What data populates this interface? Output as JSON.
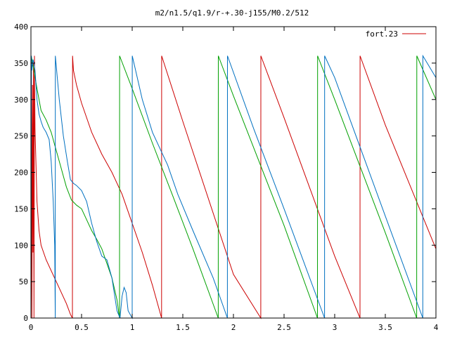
{
  "chart_data": {
    "type": "line",
    "title": "m2/n1.5/q1.9/r-+.30-j155/M0.2/512",
    "xlabel": "",
    "ylabel": "",
    "xlim": [
      0,
      4
    ],
    "ylim": [
      0,
      400
    ],
    "grid": false,
    "legend_position": "top-right",
    "x_ticks": [
      {
        "value": 0,
        "label": "0"
      },
      {
        "value": 0.5,
        "label": "0.5"
      },
      {
        "value": 1,
        "label": "1"
      },
      {
        "value": 1.5,
        "label": "1.5"
      },
      {
        "value": 2,
        "label": "2"
      },
      {
        "value": 2.5,
        "label": "2.5"
      },
      {
        "value": 3,
        "label": "3"
      },
      {
        "value": 3.5,
        "label": "3.5"
      },
      {
        "value": 4,
        "label": "4"
      }
    ],
    "y_ticks": [
      {
        "value": 0,
        "label": "0"
      },
      {
        "value": 50,
        "label": "50"
      },
      {
        "value": 100,
        "label": "100"
      },
      {
        "value": 150,
        "label": "150"
      },
      {
        "value": 200,
        "label": "200"
      },
      {
        "value": 250,
        "label": "250"
      },
      {
        "value": 300,
        "label": "300"
      },
      {
        "value": 350,
        "label": "350"
      },
      {
        "value": 400,
        "label": "400"
      }
    ],
    "series": [
      {
        "name": "fort.23",
        "color": "#cc0000",
        "points": [
          [
            0.0,
            0
          ],
          [
            0.005,
            340
          ],
          [
            0.01,
            0
          ],
          [
            0.015,
            320
          ],
          [
            0.02,
            90
          ],
          [
            0.025,
            350
          ],
          [
            0.03,
            0
          ],
          [
            0.035,
            360
          ],
          [
            0.04,
            260
          ],
          [
            0.06,
            160
          ],
          [
            0.08,
            120
          ],
          [
            0.1,
            100
          ],
          [
            0.15,
            80
          ],
          [
            0.2,
            65
          ],
          [
            0.25,
            50
          ],
          [
            0.3,
            35
          ],
          [
            0.35,
            20
          ],
          [
            0.39,
            5
          ],
          [
            0.41,
            0
          ],
          [
            0.411,
            360
          ],
          [
            0.42,
            340
          ],
          [
            0.45,
            320
          ],
          [
            0.5,
            295
          ],
          [
            0.6,
            255
          ],
          [
            0.7,
            225
          ],
          [
            0.8,
            200
          ],
          [
            0.9,
            170
          ],
          [
            1.0,
            130
          ],
          [
            1.1,
            90
          ],
          [
            1.2,
            45
          ],
          [
            1.29,
            0
          ],
          [
            1.291,
            360
          ],
          [
            1.5,
            270
          ],
          [
            2.0,
            60
          ],
          [
            2.27,
            0
          ],
          [
            2.271,
            360
          ],
          [
            2.5,
            275
          ],
          [
            3.0,
            85
          ],
          [
            3.25,
            0
          ],
          [
            3.251,
            360
          ],
          [
            3.5,
            265
          ],
          [
            4.0,
            95
          ]
        ]
      },
      {
        "name": "",
        "color": "#00a000",
        "points": [
          [
            0.0,
            0
          ],
          [
            0.003,
            360
          ],
          [
            0.01,
            355
          ],
          [
            0.03,
            340
          ],
          [
            0.06,
            315
          ],
          [
            0.1,
            285
          ],
          [
            0.15,
            272
          ],
          [
            0.2,
            255
          ],
          [
            0.25,
            230
          ],
          [
            0.3,
            205
          ],
          [
            0.35,
            180
          ],
          [
            0.4,
            162
          ],
          [
            0.45,
            155
          ],
          [
            0.5,
            150
          ],
          [
            0.55,
            135
          ],
          [
            0.6,
            120
          ],
          [
            0.65,
            108
          ],
          [
            0.7,
            95
          ],
          [
            0.75,
            75
          ],
          [
            0.8,
            55
          ],
          [
            0.85,
            25
          ],
          [
            0.875,
            0
          ],
          [
            0.876,
            360
          ],
          [
            1.0,
            315
          ],
          [
            1.2,
            240
          ],
          [
            1.4,
            168
          ],
          [
            1.6,
            95
          ],
          [
            1.85,
            0
          ],
          [
            1.851,
            360
          ],
          [
            2.0,
            305
          ],
          [
            2.5,
            127
          ],
          [
            2.83,
            0
          ],
          [
            2.831,
            360
          ],
          [
            3.0,
            300
          ],
          [
            3.5,
            117
          ],
          [
            3.81,
            0
          ],
          [
            3.811,
            360
          ],
          [
            4.0,
            300
          ]
        ]
      },
      {
        "name": "",
        "color": "#0070c0",
        "points": [
          [
            0.0,
            0
          ],
          [
            0.004,
            360
          ],
          [
            0.01,
            340
          ],
          [
            0.02,
            355
          ],
          [
            0.03,
            350
          ],
          [
            0.04,
            340
          ],
          [
            0.05,
            320
          ],
          [
            0.06,
            300
          ],
          [
            0.08,
            280
          ],
          [
            0.1,
            270
          ],
          [
            0.12,
            262
          ],
          [
            0.15,
            255
          ],
          [
            0.18,
            245
          ],
          [
            0.2,
            215
          ],
          [
            0.22,
            160
          ],
          [
            0.235,
            100
          ],
          [
            0.24,
            0
          ],
          [
            0.241,
            360
          ],
          [
            0.28,
            300
          ],
          [
            0.32,
            250
          ],
          [
            0.36,
            215
          ],
          [
            0.39,
            190
          ],
          [
            0.42,
            185
          ],
          [
            0.45,
            182
          ],
          [
            0.5,
            175
          ],
          [
            0.55,
            160
          ],
          [
            0.6,
            130
          ],
          [
            0.65,
            105
          ],
          [
            0.7,
            85
          ],
          [
            0.75,
            80
          ],
          [
            0.8,
            55
          ],
          [
            0.85,
            10
          ],
          [
            0.88,
            0
          ],
          [
            0.9,
            30
          ],
          [
            0.92,
            42
          ],
          [
            0.94,
            35
          ],
          [
            0.96,
            10
          ],
          [
            1.0,
            0
          ],
          [
            1.001,
            360
          ],
          [
            1.1,
            300
          ],
          [
            1.2,
            255
          ],
          [
            1.3,
            225
          ],
          [
            1.35,
            210
          ],
          [
            1.45,
            170
          ],
          [
            1.6,
            120
          ],
          [
            1.8,
            55
          ],
          [
            1.94,
            0
          ],
          [
            1.941,
            360
          ],
          [
            2.2,
            260
          ],
          [
            2.5,
            150
          ],
          [
            2.9,
            0
          ],
          [
            2.901,
            360
          ],
          [
            3.0,
            330
          ],
          [
            3.5,
            140
          ],
          [
            3.87,
            0
          ],
          [
            3.871,
            360
          ],
          [
            4.0,
            330
          ]
        ]
      }
    ]
  }
}
